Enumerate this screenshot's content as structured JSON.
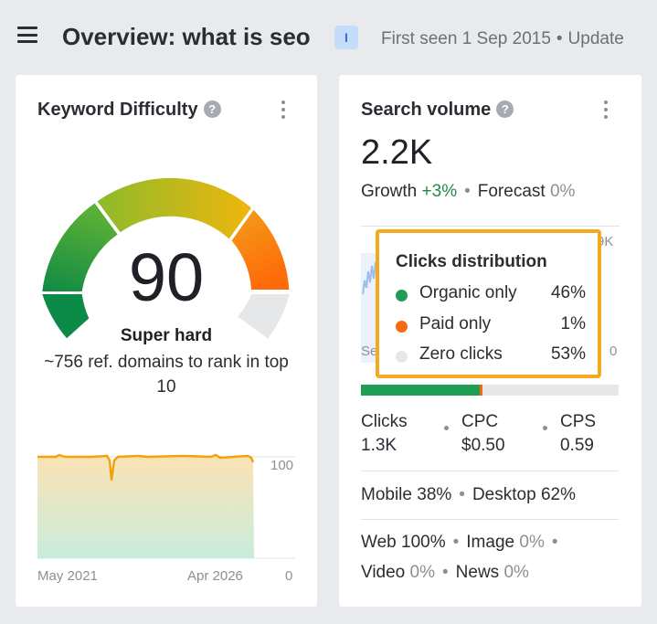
{
  "header": {
    "title": "Overview: what is seo",
    "intent_badge": "I",
    "first_seen": "First seen 1 Sep 2015",
    "updated": "Update"
  },
  "keyword_difficulty": {
    "title": "Keyword Difficulty",
    "value": "90",
    "label": "Super hard",
    "description": "~756 ref. domains to rank in top 10",
    "chart": {
      "x_start": "May 2021",
      "x_end": "Apr 2026",
      "y_max": "100",
      "y_min": "0"
    }
  },
  "search_volume": {
    "title": "Search volume",
    "value": "2.2K",
    "growth_label": "Growth",
    "growth_value": "+3%",
    "forecast_label": "Forecast",
    "forecast_value": "0%",
    "chart_partial_labels": {
      "right_top": "9K",
      "left_bottom": "Se",
      "right_bottom": "0"
    },
    "clicks_label": "Clicks",
    "clicks_value": "1.3K",
    "cpc_label": "CPC",
    "cpc_value": "$0.50",
    "cps_label": "CPS",
    "cps_value": "0.59",
    "mobile_label": "Mobile",
    "mobile_value": "38%",
    "desktop_label": "Desktop",
    "desktop_value": "62%",
    "web_label": "Web",
    "web_value": "100%",
    "image_label": "Image",
    "image_value": "0%",
    "video_label": "Video",
    "video_value": "0%",
    "news_label": "News",
    "news_value": "0%"
  },
  "clicks_distribution": {
    "title": "Clicks distribution",
    "rows": [
      {
        "label": "Organic only",
        "value": "46%",
        "color": "#1f9d55"
      },
      {
        "label": "Paid only",
        "value": "1%",
        "color": "#f36a10"
      },
      {
        "label": "Zero clicks",
        "value": "53%",
        "color": "#e6e7e9"
      }
    ],
    "bar_fractions": [
      0.46,
      0.01,
      0.53
    ]
  }
}
